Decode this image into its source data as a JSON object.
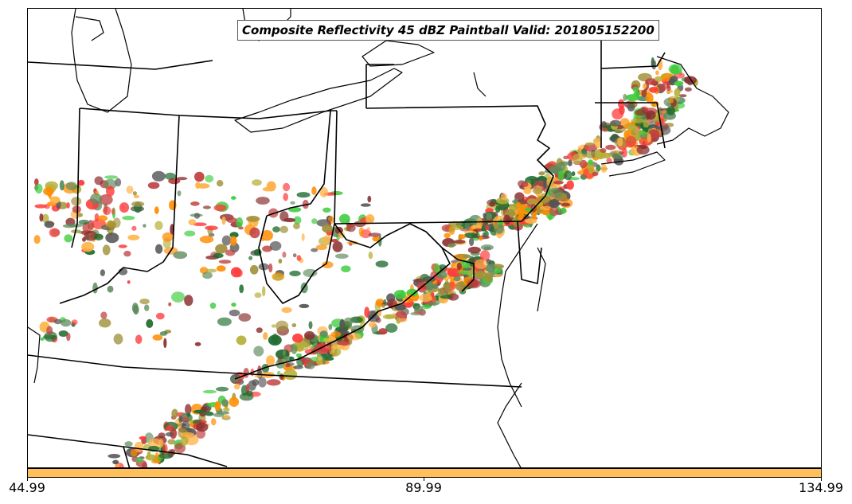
{
  "title": "Composite Reflectivity 45 dBZ Paintball Valid: 201805152200",
  "colorbar": {
    "color": "#FFBF5A",
    "ticks": [
      "44.99",
      "89.99",
      "134.99"
    ]
  },
  "palette": [
    "#1E6B2E",
    "#3DCC3D",
    "#FF3B3B",
    "#FF8C00",
    "#FFB347",
    "#8B2F2F",
    "#A0913A",
    "#B5B03A",
    "#555555",
    "#5E8C5E",
    "#C04040"
  ]
}
